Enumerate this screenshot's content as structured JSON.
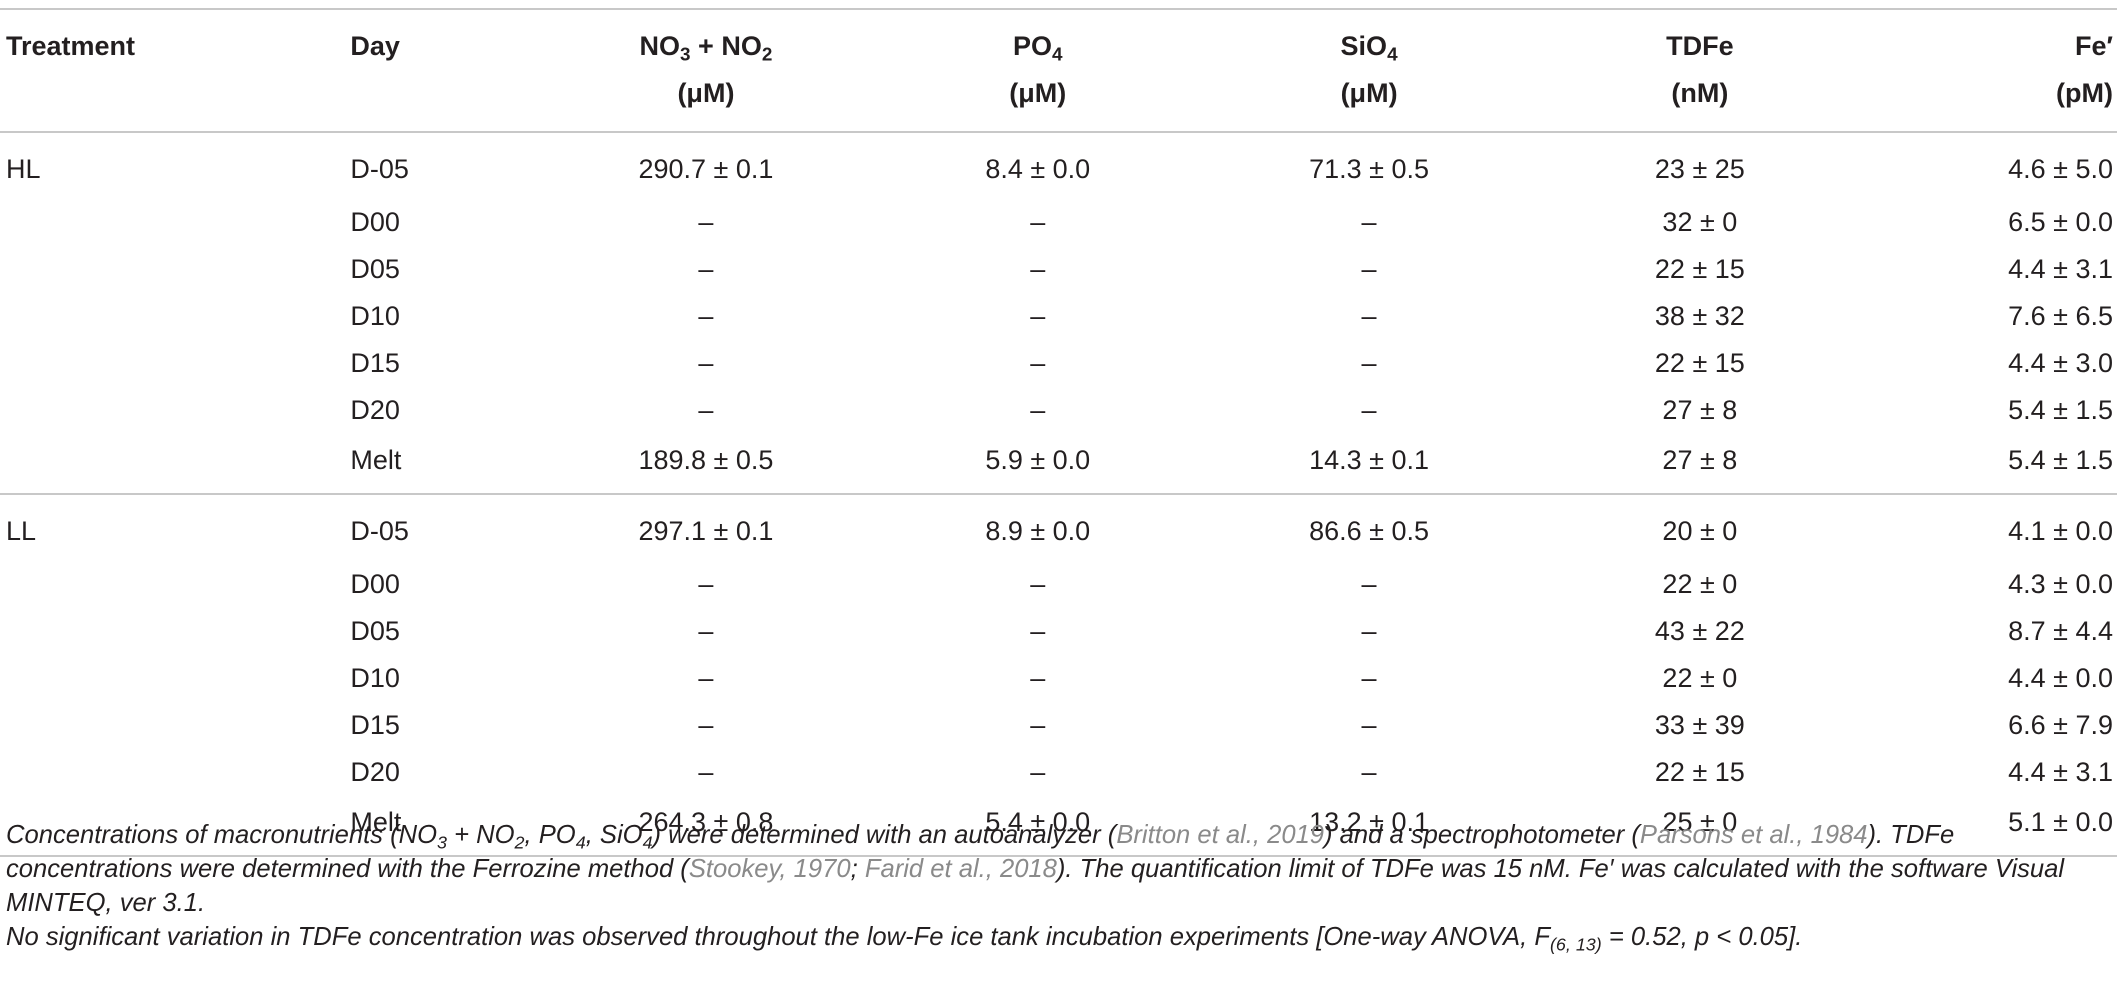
{
  "table": {
    "headers": {
      "treatment": "Treatment",
      "day": "Day",
      "no3": {
        "line1_parts": [
          "NO",
          "3",
          " + NO",
          "2"
        ],
        "line2": "(μM)"
      },
      "po4": {
        "line1_parts": [
          "PO",
          "4"
        ],
        "line2": "(μM)"
      },
      "sio4": {
        "line1_parts": [
          "SiO",
          "4"
        ],
        "line2": "(μM)"
      },
      "tdfe": {
        "line1": "TDFe",
        "line2": "(nM)"
      },
      "fe": {
        "line1": "Fe′",
        "line2": "(pM)"
      }
    },
    "groups": [
      {
        "treatment": "HL",
        "rows": [
          {
            "day": "D-05",
            "no3": "290.7 ± 0.1",
            "po4": "8.4 ± 0.0",
            "sio4": "71.3 ± 0.5",
            "tdfe": "23 ± 25",
            "fe": "4.6 ± 5.0"
          },
          {
            "day": "D00",
            "no3": "–",
            "po4": "–",
            "sio4": "–",
            "tdfe": "32 ± 0",
            "fe": "6.5 ± 0.0"
          },
          {
            "day": "D05",
            "no3": "–",
            "po4": "–",
            "sio4": "–",
            "tdfe": "22 ± 15",
            "fe": "4.4 ± 3.1"
          },
          {
            "day": "D10",
            "no3": "–",
            "po4": "–",
            "sio4": "–",
            "tdfe": "38 ± 32",
            "fe": "7.6 ± 6.5"
          },
          {
            "day": "D15",
            "no3": "–",
            "po4": "–",
            "sio4": "–",
            "tdfe": "22 ± 15",
            "fe": "4.4 ± 3.0"
          },
          {
            "day": "D20",
            "no3": "–",
            "po4": "–",
            "sio4": "–",
            "tdfe": "27 ± 8",
            "fe": "5.4 ± 1.5"
          },
          {
            "day": "Melt",
            "no3": "189.8 ± 0.5",
            "po4": "5.9 ± 0.0",
            "sio4": "14.3 ± 0.1",
            "tdfe": "27 ± 8",
            "fe": "5.4 ± 1.5"
          }
        ]
      },
      {
        "treatment": "LL",
        "rows": [
          {
            "day": "D-05",
            "no3": "297.1 ± 0.1",
            "po4": "8.9 ± 0.0",
            "sio4": "86.6 ± 0.5",
            "tdfe": "20 ± 0",
            "fe": "4.1 ± 0.0"
          },
          {
            "day": "D00",
            "no3": "–",
            "po4": "–",
            "sio4": "–",
            "tdfe": "22 ± 0",
            "fe": "4.3 ± 0.0"
          },
          {
            "day": "D05",
            "no3": "–",
            "po4": "–",
            "sio4": "–",
            "tdfe": "43 ± 22",
            "fe": "8.7 ± 4.4"
          },
          {
            "day": "D10",
            "no3": "–",
            "po4": "–",
            "sio4": "–",
            "tdfe": "22 ± 0",
            "fe": "4.4 ± 0.0"
          },
          {
            "day": "D15",
            "no3": "–",
            "po4": "–",
            "sio4": "–",
            "tdfe": "33 ± 39",
            "fe": "6.6 ± 7.9"
          },
          {
            "day": "D20",
            "no3": "–",
            "po4": "–",
            "sio4": "–",
            "tdfe": "22 ± 15",
            "fe": "4.4 ± 3.1"
          },
          {
            "day": "Melt",
            "no3": "264.3 ±  0.8",
            "po4": "5.4 ± 0.0",
            "sio4": "13.2 ± 0.1",
            "tdfe": "25 ± 0",
            "fe": "5.1 ± 0.0"
          }
        ]
      }
    ]
  },
  "footnotes": {
    "note1": {
      "segments": [
        {
          "t": "Concentrations of macronutrients (NO"
        },
        {
          "t": "3",
          "sub": true
        },
        {
          "t": " + NO"
        },
        {
          "t": "2",
          "sub": true
        },
        {
          "t": ", PO"
        },
        {
          "t": "4",
          "sub": true
        },
        {
          "t": ", SiO"
        },
        {
          "t": "4",
          "sub": true
        },
        {
          "t": ") were determined with an autoanalyzer ("
        },
        {
          "t": "Britton et al., 2019",
          "ref": true
        },
        {
          "t": ") and a spectrophotometer ("
        },
        {
          "t": "Parsons et al., 1984",
          "ref": true
        },
        {
          "t": "). TDFe concentrations were determined with the Ferrozine method ("
        },
        {
          "t": "Stookey, 1970",
          "ref": true
        },
        {
          "t": "; "
        },
        {
          "t": "Farid et al., 2018",
          "ref": true
        },
        {
          "t": "). The quantification limit of TDFe was 15 nM. Fe′ was calculated with the software Visual MINTEQ, ver 3.1."
        }
      ]
    },
    "note2": {
      "segments": [
        {
          "t": "No significant variation in TDFe concentration was observed throughout the low-Fe ice tank incubation experiments [One-way ANOVA, F"
        },
        {
          "t": "(6, 13)",
          "sub": true
        },
        {
          "t": " = 0.52, p < 0.05]."
        }
      ]
    }
  }
}
